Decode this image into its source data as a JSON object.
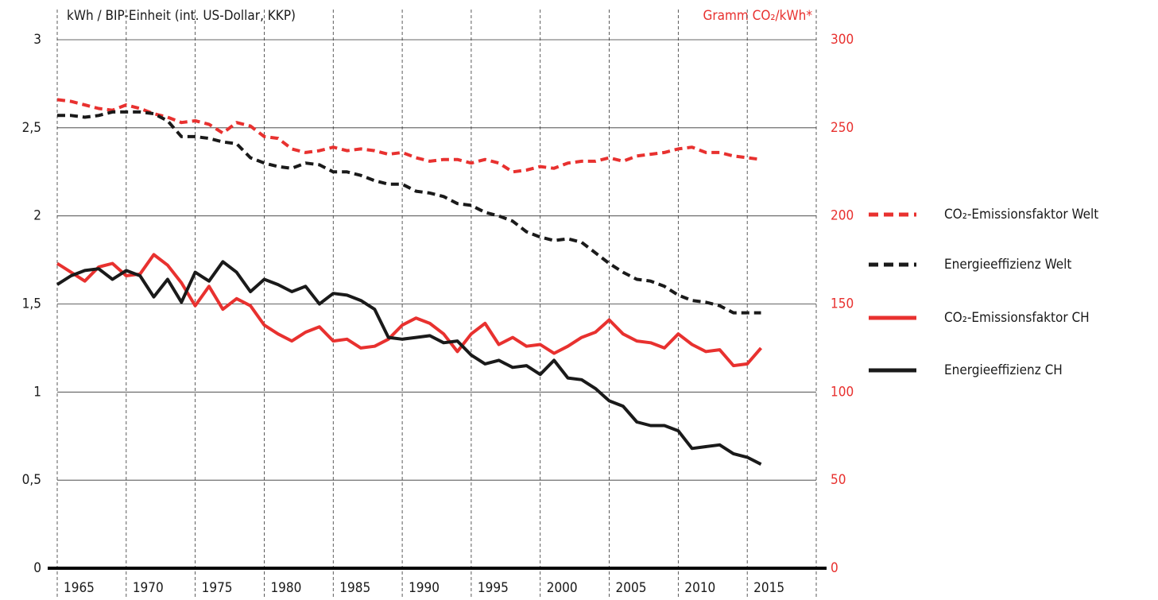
{
  "chart_data": {
    "type": "line",
    "y_label": "kWh / BIP-Einheit (int. US-Dollar, KKP)",
    "y2_label": "Gramm CO₂/kWh*",
    "x": [
      1965,
      1966,
      1967,
      1968,
      1969,
      1970,
      1971,
      1972,
      1973,
      1974,
      1975,
      1976,
      1977,
      1978,
      1979,
      1980,
      1981,
      1982,
      1983,
      1984,
      1985,
      1986,
      1987,
      1988,
      1989,
      1990,
      1991,
      1992,
      1993,
      1994,
      1995,
      1996,
      1997,
      1998,
      1999,
      2000,
      2001,
      2002,
      2003,
      2004,
      2005,
      2006,
      2007,
      2008,
      2009,
      2010,
      2011,
      2012,
      2013,
      2014,
      2015,
      2016
    ],
    "xlim": [
      1965,
      2020
    ],
    "xticks": [
      1965,
      1970,
      1975,
      1980,
      1985,
      1990,
      1995,
      2000,
      2005,
      2010,
      2015
    ],
    "ylim": [
      0,
      3
    ],
    "yticks": [
      0,
      {
        "value": 0.5,
        "label": "0,5"
      },
      1,
      {
        "value": 1.5,
        "label": "1,5"
      },
      2,
      {
        "value": 2.5,
        "label": "2,5"
      },
      3
    ],
    "y2lim": [
      0,
      300
    ],
    "y2ticks": [
      0,
      50,
      100,
      150,
      200,
      250,
      300
    ],
    "grid": true,
    "series": [
      {
        "name": "CO₂-Emissionsfaktor Welt",
        "color": "#e8312f",
        "style": "dashed",
        "axis": "y2",
        "values": [
          266,
          265,
          263,
          261,
          260,
          263,
          261,
          258,
          256,
          253,
          254,
          252,
          247,
          253,
          251,
          245,
          244,
          238,
          236,
          237,
          239,
          237,
          238,
          237,
          235,
          236,
          233,
          231,
          232,
          232,
          230,
          232,
          230,
          225,
          226,
          228,
          227,
          230,
          231,
          231,
          233,
          231,
          234,
          235,
          236,
          238,
          239,
          236,
          236,
          234,
          233,
          232
        ]
      },
      {
        "name": "Energieeffizienz Welt",
        "color": "#1a1a1a",
        "style": "dashed",
        "values": [
          2.57,
          2.57,
          2.56,
          2.57,
          2.59,
          2.59,
          2.59,
          2.58,
          2.54,
          2.45,
          2.45,
          2.44,
          2.42,
          2.41,
          2.33,
          2.3,
          2.28,
          2.27,
          2.3,
          2.29,
          2.25,
          2.25,
          2.23,
          2.2,
          2.18,
          2.18,
          2.14,
          2.13,
          2.11,
          2.07,
          2.06,
          2.02,
          2.0,
          1.97,
          1.91,
          1.88,
          1.86,
          1.87,
          1.85,
          1.79,
          1.73,
          1.68,
          1.64,
          1.63,
          1.6,
          1.55,
          1.52,
          1.51,
          1.49,
          1.45,
          1.45,
          1.45
        ]
      },
      {
        "name": "CO₂-Emissionsfaktor CH",
        "color": "#e8312f",
        "style": "solid",
        "axis": "y2",
        "values": [
          173,
          168,
          163,
          171,
          173,
          166,
          167,
          178,
          172,
          162,
          149,
          160,
          147,
          153,
          149,
          138,
          133,
          129,
          134,
          137,
          129,
          130,
          125,
          126,
          130,
          138,
          142,
          139,
          133,
          123,
          133,
          139,
          127,
          131,
          126,
          127,
          122,
          126,
          131,
          134,
          141,
          133,
          129,
          128,
          125,
          133,
          127,
          123,
          124,
          115,
          116,
          125
        ]
      },
      {
        "name": "Energieeffizienz CH",
        "color": "#1a1a1a",
        "style": "solid",
        "values": [
          1.61,
          1.66,
          1.69,
          1.7,
          1.64,
          1.69,
          1.66,
          1.54,
          1.64,
          1.51,
          1.68,
          1.63,
          1.74,
          1.68,
          1.57,
          1.64,
          1.61,
          1.57,
          1.6,
          1.5,
          1.56,
          1.55,
          1.52,
          1.47,
          1.31,
          1.3,
          1.31,
          1.32,
          1.28,
          1.29,
          1.21,
          1.16,
          1.18,
          1.14,
          1.15,
          1.1,
          1.18,
          1.08,
          1.07,
          1.02,
          0.95,
          0.92,
          0.83,
          0.81,
          0.81,
          0.78,
          0.68,
          0.69,
          0.7,
          0.65,
          0.63,
          0.59
        ]
      }
    ]
  }
}
